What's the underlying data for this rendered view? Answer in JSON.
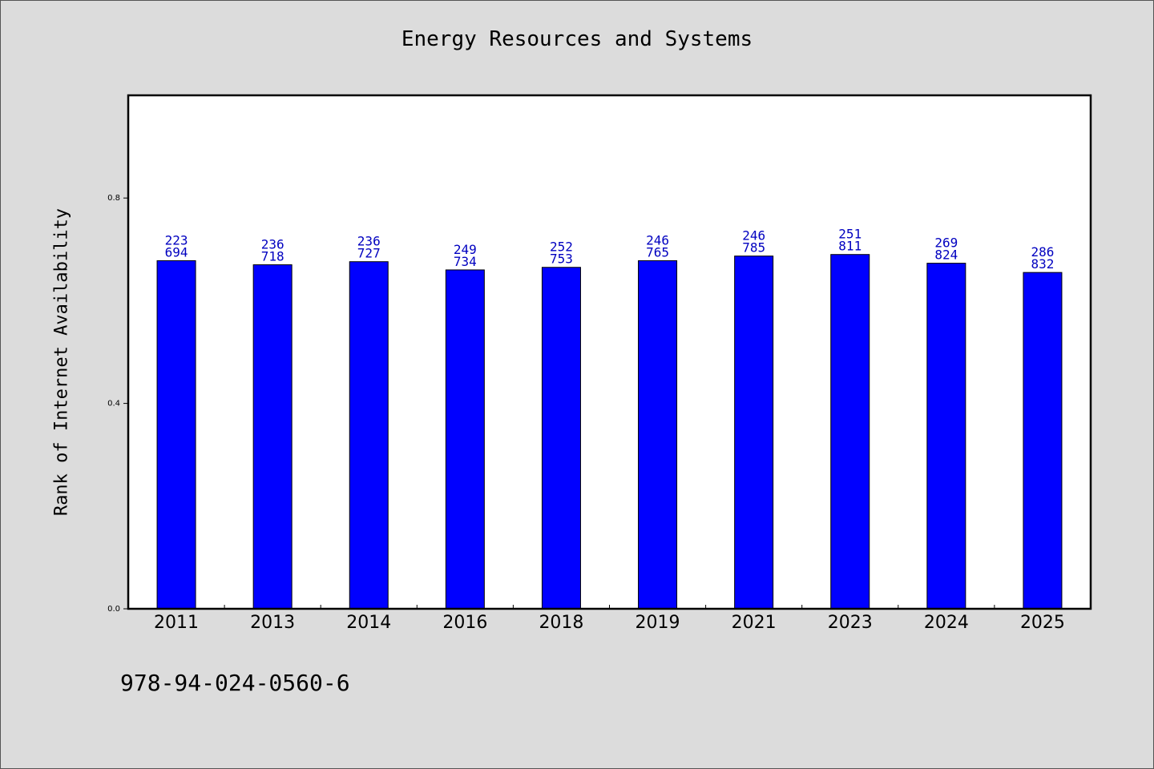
{
  "chart_data": {
    "type": "bar",
    "title": "Energy Resources and Systems",
    "xlabel": "",
    "ylabel": "Rank of Internet Availability",
    "categories": [
      "2011",
      "2013",
      "2014",
      "2016",
      "2018",
      "2019",
      "2021",
      "2023",
      "2024",
      "2025"
    ],
    "values": [
      0.678,
      0.67,
      0.676,
      0.66,
      0.665,
      0.678,
      0.687,
      0.69,
      0.673,
      0.655
    ],
    "data_labels": [
      [
        "223",
        "694"
      ],
      [
        "236",
        "718"
      ],
      [
        "236",
        "727"
      ],
      [
        "249",
        "734"
      ],
      [
        "252",
        "753"
      ],
      [
        "246",
        "765"
      ],
      [
        "246",
        "785"
      ],
      [
        "251",
        "811"
      ],
      [
        "269",
        "824"
      ],
      [
        "286",
        "832"
      ]
    ],
    "ylim": [
      0.0,
      1.0
    ],
    "yticks": [
      "0.0",
      "0.4",
      "0.8"
    ],
    "bar_color": "#0000ff",
    "label_color": "#0000c0",
    "grid": false,
    "legend": "none"
  },
  "footer": {
    "isbn": "978-94-024-0560-6"
  }
}
